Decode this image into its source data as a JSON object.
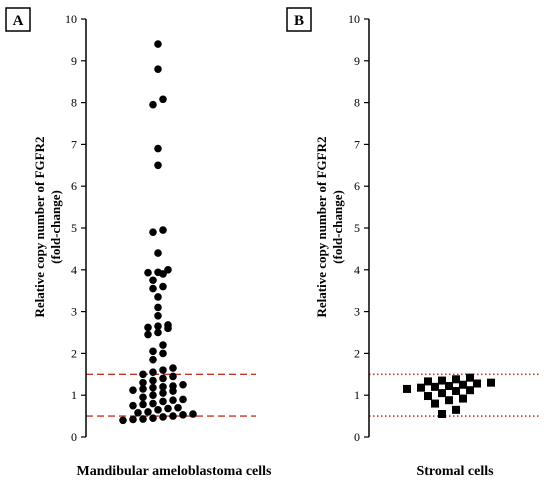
{
  "chart_data": [
    {
      "type": "scatter",
      "panel_label": "A",
      "xlabel": "Mandibular ameloblastoma cells",
      "ylabel": "Relative copy number of FGFR2",
      "ylabel_line2": "(fold-change)",
      "ylim": [
        0,
        10
      ],
      "yticks": [
        "0",
        "1",
        "2",
        "3",
        "4",
        "5",
        "6",
        "7",
        "8",
        "9",
        "10"
      ],
      "marker": "circle",
      "color": "#000000",
      "reference_lines": [
        {
          "y": 1.5,
          "color": "#c0392b",
          "style": "dashed"
        },
        {
          "y": 0.5,
          "color": "#c0392b",
          "style": "dashed"
        }
      ],
      "values": [
        9.4,
        8.8,
        8.08,
        7.95,
        6.9,
        6.5,
        4.95,
        4.9,
        4.4,
        4.0,
        3.94,
        3.93,
        3.9,
        3.75,
        3.6,
        3.55,
        3.35,
        3.1,
        2.9,
        2.68,
        2.65,
        2.62,
        2.6,
        2.5,
        2.45,
        2.2,
        2.05,
        2.0,
        1.85,
        1.65,
        1.6,
        1.55,
        1.5,
        1.45,
        1.4,
        1.35,
        1.3,
        1.25,
        1.22,
        1.2,
        1.18,
        1.15,
        1.12,
        1.1,
        1.05,
        1.0,
        0.95,
        0.9,
        0.88,
        0.85,
        0.8,
        0.78,
        0.75,
        0.7,
        0.68,
        0.65,
        0.6,
        0.58,
        0.55,
        0.53,
        0.5,
        0.48,
        0.45,
        0.43,
        0.42,
        0.4
      ]
    },
    {
      "type": "scatter",
      "panel_label": "B",
      "xlabel": "Stromal cells",
      "ylabel": "Relative copy number of FGFR2",
      "ylabel_line2": "(fold-change)",
      "ylim": [
        0,
        10
      ],
      "yticks": [
        "0",
        "1",
        "2",
        "3",
        "4",
        "5",
        "6",
        "7",
        "8",
        "9",
        "10"
      ],
      "marker": "square",
      "color": "#000000",
      "reference_lines": [
        {
          "y": 1.5,
          "color": "#c0392b",
          "style": "dotted"
        },
        {
          "y": 0.5,
          "color": "#c0392b",
          "style": "dotted"
        }
      ],
      "values": [
        1.42,
        1.38,
        1.35,
        1.33,
        1.3,
        1.28,
        1.25,
        1.22,
        1.2,
        1.18,
        1.15,
        1.12,
        1.1,
        1.05,
        0.98,
        0.92,
        0.88,
        0.8,
        0.65,
        0.55
      ]
    }
  ]
}
